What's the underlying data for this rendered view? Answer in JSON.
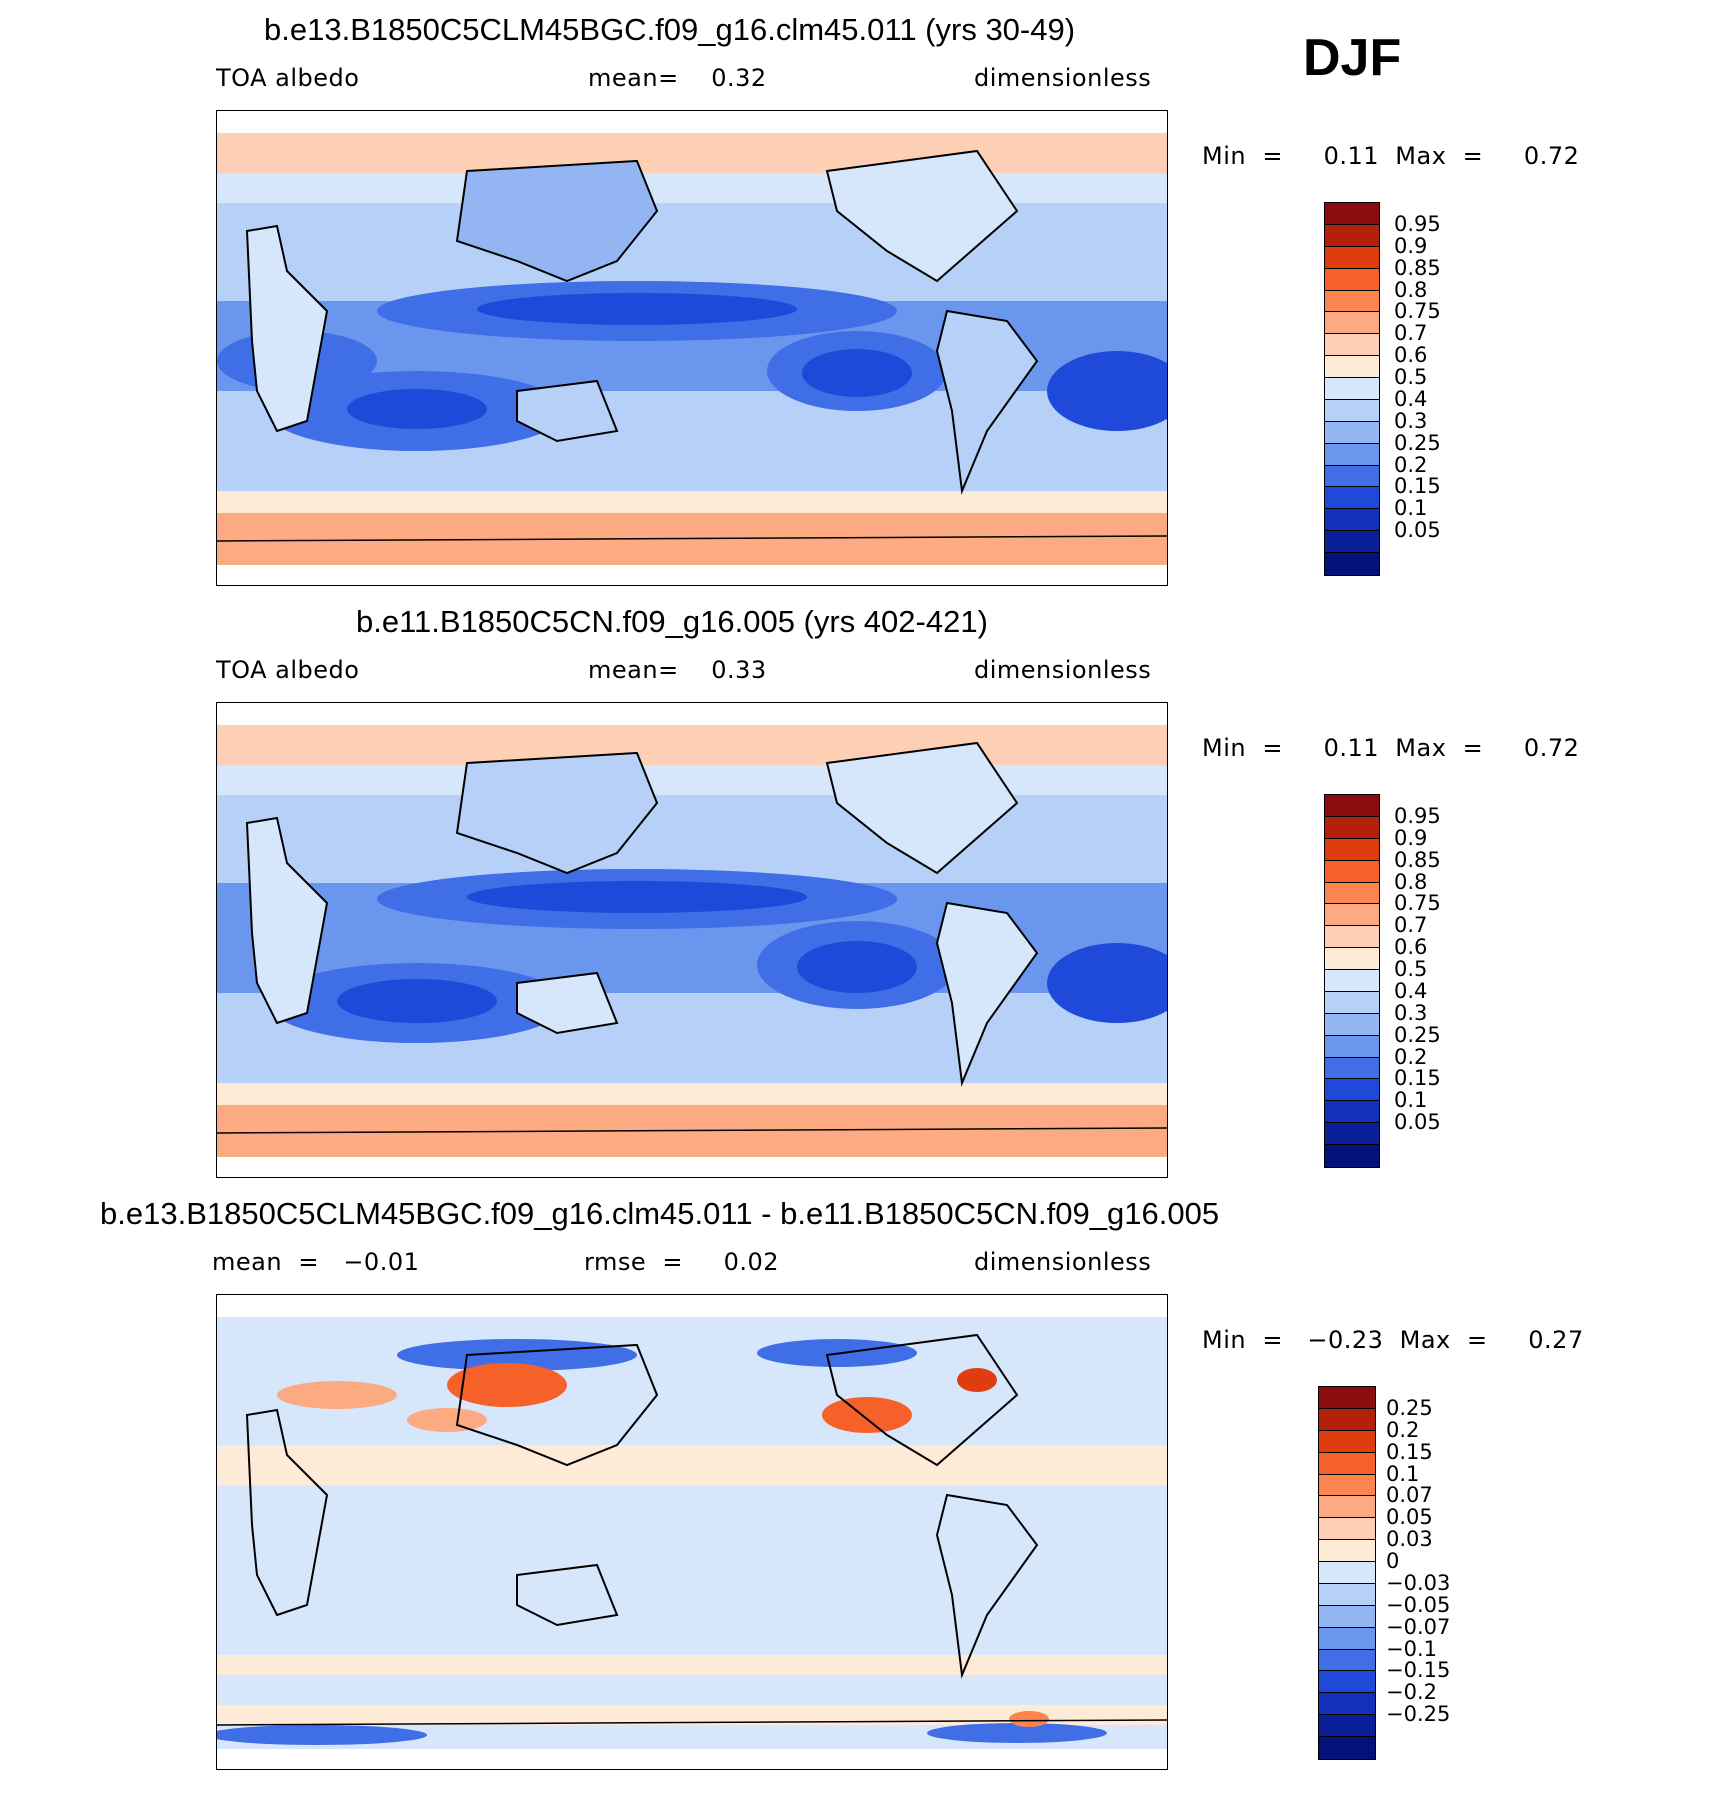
{
  "season": "DJF",
  "panels": [
    {
      "title": "b.e13.B1850C5CLM45BGC.f09_g16.clm45.011 (yrs 30-49)",
      "left_label": "TOA albedo",
      "center_label": "mean=    0.32",
      "right_label": "dimensionless",
      "minmax": "Min  =     0.11  Max  =     0.72",
      "colorbar": {
        "colors": [
          "#8c0d0d",
          "#b3200c",
          "#e03d0f",
          "#f6612a",
          "#fb8450",
          "#fcaa82",
          "#fdd0b6",
          "#fdebd8",
          "#d6e6fb",
          "#b7d0f7",
          "#93b6f3",
          "#6a96ee",
          "#3f6ee7",
          "#1f4ad9",
          "#1231ba",
          "#0a1f96",
          "#05117a"
        ],
        "labels": [
          "0.95",
          "0.9",
          "0.85",
          "0.8",
          "0.75",
          "0.7",
          "0.6",
          "0.5",
          "0.4",
          "0.3",
          "0.25",
          "0.2",
          "0.15",
          "0.1",
          "0.05"
        ]
      }
    },
    {
      "title": "b.e11.B1850C5CN.f09_g16.005 (yrs 402-421)",
      "left_label": "TOA albedo",
      "center_label": "mean=    0.33",
      "right_label": "dimensionless",
      "minmax": "Min  =     0.11  Max  =     0.72",
      "colorbar": {
        "colors": [
          "#8c0d0d",
          "#b3200c",
          "#e03d0f",
          "#f6612a",
          "#fb8450",
          "#fcaa82",
          "#fdd0b6",
          "#fdebd8",
          "#d6e6fb",
          "#b7d0f7",
          "#93b6f3",
          "#6a96ee",
          "#3f6ee7",
          "#1f4ad9",
          "#1231ba",
          "#0a1f96",
          "#05117a"
        ],
        "labels": [
          "0.95",
          "0.9",
          "0.85",
          "0.8",
          "0.75",
          "0.7",
          "0.6",
          "0.5",
          "0.4",
          "0.3",
          "0.25",
          "0.2",
          "0.15",
          "0.1",
          "0.05"
        ]
      }
    },
    {
      "title": "b.e13.B1850C5CLM45BGC.f09_g16.clm45.011 - b.e11.B1850C5CN.f09_g16.005",
      "left_label": "mean  =   −0.01",
      "center_label": "rmse  =     0.02",
      "right_label": "dimensionless",
      "minmax": "Min  =   −0.23  Max  =     0.27",
      "colorbar": {
        "colors": [
          "#8c0d0d",
          "#b3200c",
          "#e03d0f",
          "#f6612a",
          "#fb8450",
          "#fcaa82",
          "#fdd0b6",
          "#fdebd8",
          "#d6e6fb",
          "#b7d0f7",
          "#93b6f3",
          "#6a96ee",
          "#3f6ee7",
          "#1f4ad9",
          "#1231ba",
          "#0a1f96",
          "#05117a"
        ],
        "labels": [
          "0.25",
          "0.2",
          "0.15",
          "0.1",
          "0.07",
          "0.05",
          "0.03",
          "0",
          "−0.03",
          "−0.05",
          "−0.07",
          "−0.1",
          "−0.15",
          "−0.2",
          "−0.25"
        ]
      }
    }
  ]
}
